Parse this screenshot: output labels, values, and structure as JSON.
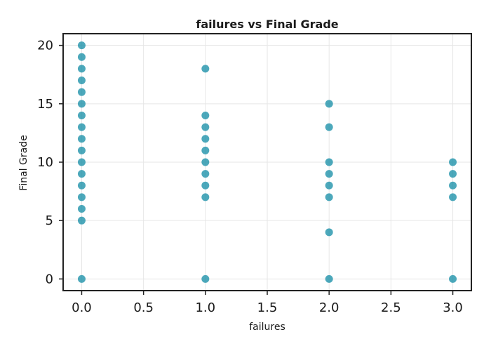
{
  "chart_data": {
    "type": "scatter",
    "title": "failures vs Final Grade",
    "xlabel": "failures",
    "ylabel": "Final Grade",
    "xlim": [
      -0.15,
      3.15
    ],
    "ylim": [
      -1,
      21
    ],
    "xticks": [
      "0.0",
      "0.5",
      "1.0",
      "1.5",
      "2.0",
      "2.5",
      "3.0"
    ],
    "yticks": [
      "0",
      "5",
      "10",
      "15",
      "20"
    ],
    "grid": true,
    "marker_color": "#1a8fa8",
    "points": [
      {
        "x": 0,
        "y": 20
      },
      {
        "x": 0,
        "y": 19
      },
      {
        "x": 0,
        "y": 18
      },
      {
        "x": 0,
        "y": 17
      },
      {
        "x": 0,
        "y": 16
      },
      {
        "x": 0,
        "y": 15
      },
      {
        "x": 0,
        "y": 14
      },
      {
        "x": 0,
        "y": 13
      },
      {
        "x": 0,
        "y": 12
      },
      {
        "x": 0,
        "y": 11
      },
      {
        "x": 0,
        "y": 10
      },
      {
        "x": 0,
        "y": 9
      },
      {
        "x": 0,
        "y": 8
      },
      {
        "x": 0,
        "y": 7
      },
      {
        "x": 0,
        "y": 6
      },
      {
        "x": 0,
        "y": 5
      },
      {
        "x": 0,
        "y": 0
      },
      {
        "x": 1,
        "y": 18
      },
      {
        "x": 1,
        "y": 14
      },
      {
        "x": 1,
        "y": 13
      },
      {
        "x": 1,
        "y": 12
      },
      {
        "x": 1,
        "y": 11
      },
      {
        "x": 1,
        "y": 10
      },
      {
        "x": 1,
        "y": 9
      },
      {
        "x": 1,
        "y": 8
      },
      {
        "x": 1,
        "y": 7
      },
      {
        "x": 1,
        "y": 0
      },
      {
        "x": 2,
        "y": 15
      },
      {
        "x": 2,
        "y": 13
      },
      {
        "x": 2,
        "y": 10
      },
      {
        "x": 2,
        "y": 9
      },
      {
        "x": 2,
        "y": 8
      },
      {
        "x": 2,
        "y": 7
      },
      {
        "x": 2,
        "y": 4
      },
      {
        "x": 2,
        "y": 0
      },
      {
        "x": 3,
        "y": 10
      },
      {
        "x": 3,
        "y": 9
      },
      {
        "x": 3,
        "y": 8
      },
      {
        "x": 3,
        "y": 7
      },
      {
        "x": 3,
        "y": 0
      }
    ]
  }
}
